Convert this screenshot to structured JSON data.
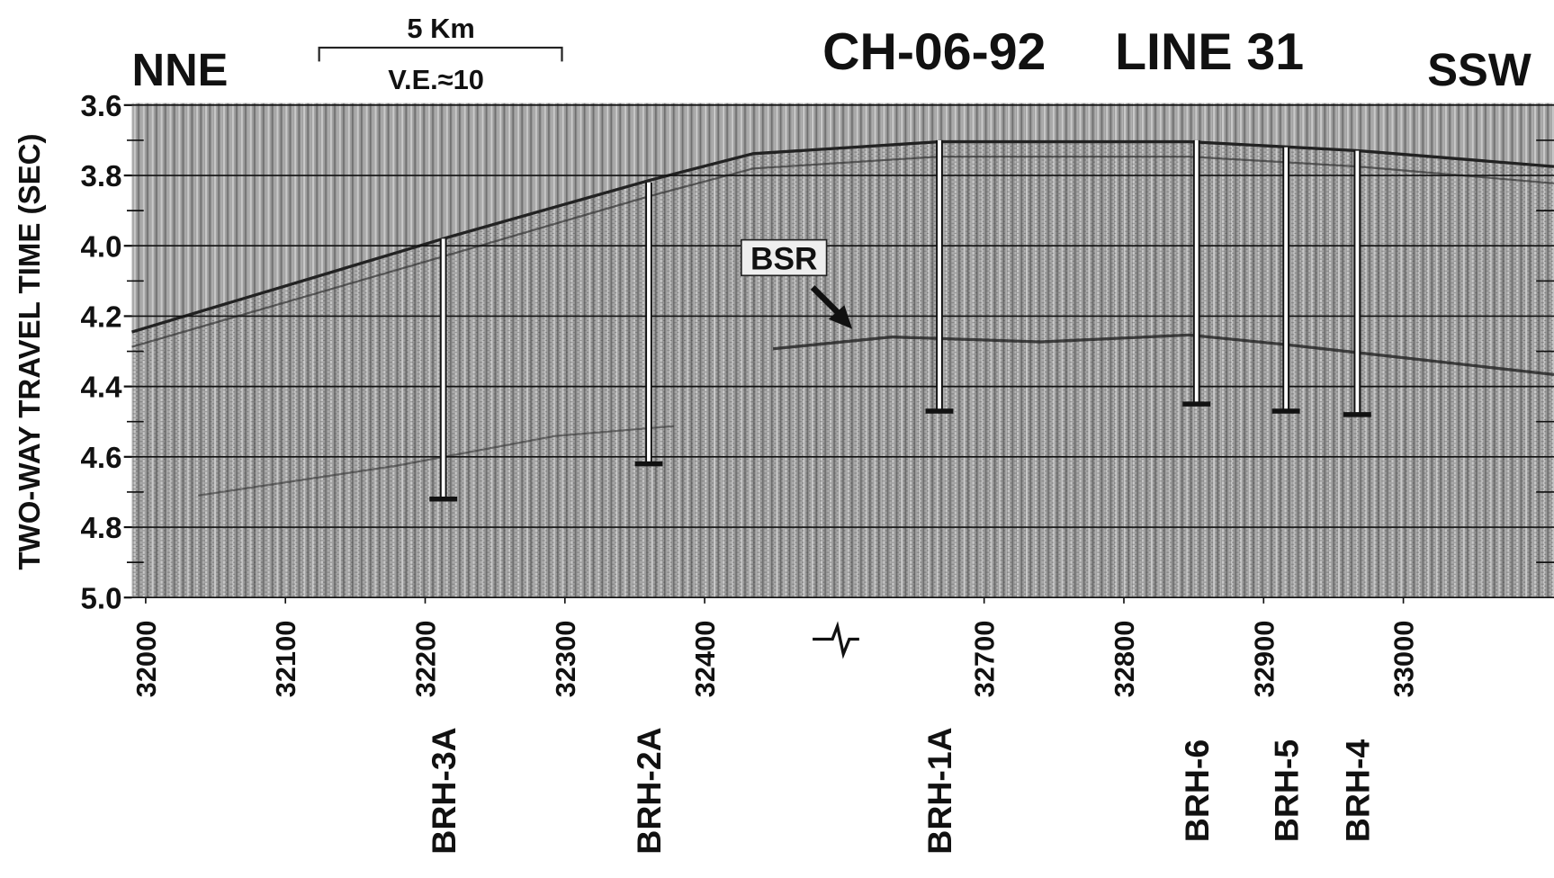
{
  "chart_data": {
    "type": "seismic-section",
    "title": "CH-06-92",
    "subtitle": "LINE 31",
    "left_direction": "NNE",
    "right_direction": "SSW",
    "scale_bar_label": "5 Km",
    "vertical_exaggeration": "V.E.≈10",
    "y_label": "TWO-WAY TRAVEL TIME (SEC)",
    "annotation": "BSR",
    "ylim": [
      3.6,
      5.0
    ],
    "yticks": [
      3.6,
      3.8,
      {
        "value": 4.0,
        "label": "4.0"
      },
      4.2,
      4.4,
      4.6,
      4.8,
      {
        "value": 5.0,
        "label": "5.0"
      }
    ],
    "yticks_minor": [
      3.7,
      3.9,
      4.1,
      4.3,
      4.5,
      4.7,
      4.9
    ],
    "xlim": [
      31990,
      33108
    ],
    "xticks": [
      32000,
      32100,
      32200,
      32300,
      32400,
      32700,
      32800,
      32900,
      33000
    ],
    "x_break": [
      32400,
      32700
    ],
    "grid": true,
    "borehole_color": "#ffffff",
    "boreholes": [
      {
        "name": "BRH-3A",
        "shotpoint": 32213,
        "top": 3.98,
        "bottom": 4.72
      },
      {
        "name": "BRH-2A",
        "shotpoint": 32360,
        "top": 3.82,
        "bottom": 4.62
      },
      {
        "name": "BRH-1A",
        "shotpoint": 32652,
        "top": 3.7,
        "bottom": 4.47
      },
      {
        "name": "BRH-6",
        "shotpoint": 32852,
        "top": 3.7,
        "bottom": 4.45
      },
      {
        "name": "BRH-5",
        "shotpoint": 32916,
        "top": 3.72,
        "bottom": 4.47
      },
      {
        "name": "BRH-4",
        "shotpoint": 32967,
        "top": 3.73,
        "bottom": 4.48
      }
    ]
  }
}
